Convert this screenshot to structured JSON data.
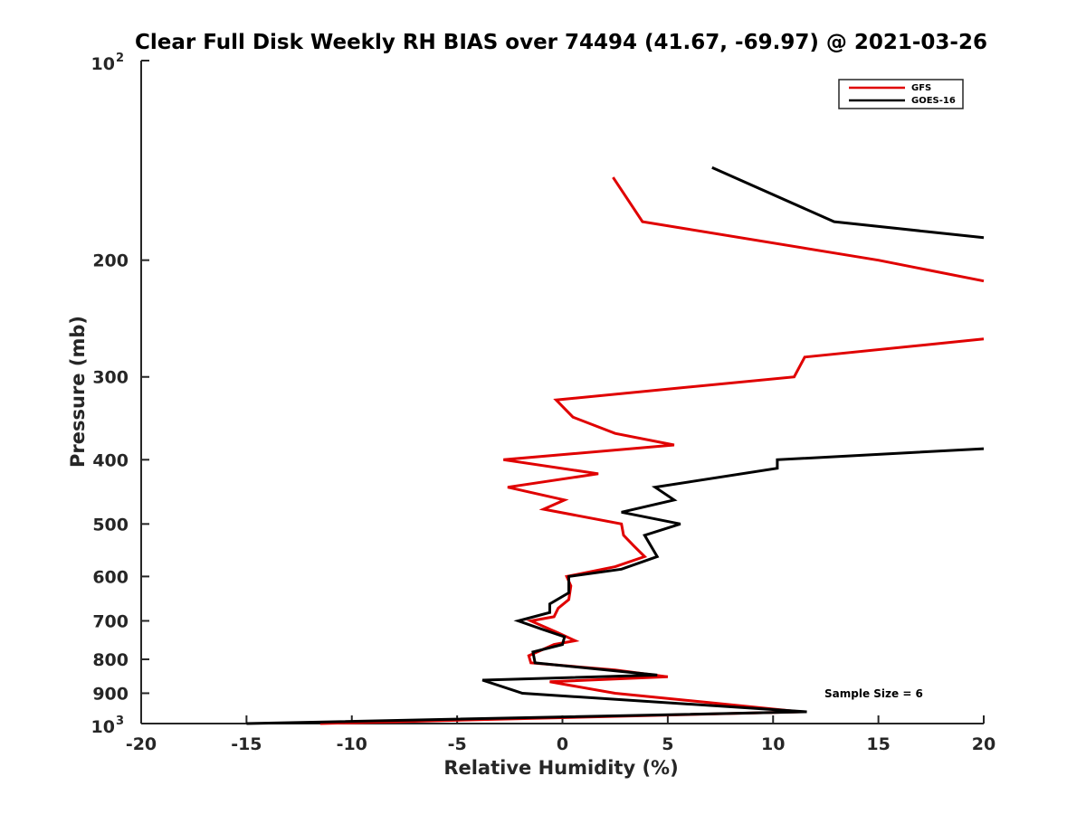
{
  "chart_data": {
    "type": "line",
    "title": "Clear Full Disk Weekly RH BIAS over 74494 (41.67, -69.97) @ 2021-03-26",
    "xlabel": "Relative Humidity (%)",
    "ylabel": "Pressure (mb)",
    "xlim": [
      -20,
      20
    ],
    "ylim": [
      100,
      1000
    ],
    "yscale": "log",
    "y_reversed": true,
    "x_ticks": [
      -20,
      -15,
      -10,
      -5,
      0,
      5,
      10,
      15,
      20
    ],
    "x_tick_labels": [
      "-20",
      "-15",
      "-10",
      "-5",
      "0",
      "5",
      "10",
      "15",
      "20"
    ],
    "y_ticks": [
      200,
      300,
      400,
      500,
      600,
      700,
      800,
      900
    ],
    "y_tick_labels": [
      "200",
      "300",
      "400",
      "500",
      "600",
      "700",
      "800",
      "900"
    ],
    "y_end_labels": {
      "top_base": "10",
      "top_exp": "2",
      "bottom_base": "10",
      "bottom_exp": "3"
    },
    "legend_position": "top-right",
    "grid": false,
    "annotation": "Sample Size = 6",
    "series": [
      {
        "name": "GFS",
        "color": "#e00000",
        "points": [
          {
            "x": 2.4,
            "p": 150
          },
          {
            "x": 3.8,
            "p": 175
          },
          {
            "x": 15.0,
            "p": 200
          },
          {
            "x": 20.0,
            "p": 215
          },
          {
            "x": null,
            "p": 230
          },
          {
            "x": 20.0,
            "p": 263
          },
          {
            "x": 11.5,
            "p": 280
          },
          {
            "x": 11.0,
            "p": 300
          },
          {
            "x": -0.3,
            "p": 325
          },
          {
            "x": 0.5,
            "p": 345
          },
          {
            "x": 2.5,
            "p": 365
          },
          {
            "x": 5.3,
            "p": 380
          },
          {
            "x": -2.8,
            "p": 400
          },
          {
            "x": 1.7,
            "p": 420
          },
          {
            "x": -2.6,
            "p": 440
          },
          {
            "x": 0.1,
            "p": 460
          },
          {
            "x": -0.9,
            "p": 475
          },
          {
            "x": 2.8,
            "p": 500
          },
          {
            "x": 2.9,
            "p": 520
          },
          {
            "x": 3.4,
            "p": 540
          },
          {
            "x": 3.9,
            "p": 560
          },
          {
            "x": 2.5,
            "p": 580
          },
          {
            "x": 0.2,
            "p": 600
          },
          {
            "x": 0.4,
            "p": 620
          },
          {
            "x": 0.3,
            "p": 650
          },
          {
            "x": -0.2,
            "p": 670
          },
          {
            "x": -0.4,
            "p": 690
          },
          {
            "x": -1.5,
            "p": 700
          },
          {
            "x": -0.2,
            "p": 730
          },
          {
            "x": 0.6,
            "p": 750
          },
          {
            "x": -0.4,
            "p": 760
          },
          {
            "x": -1.6,
            "p": 790
          },
          {
            "x": -1.5,
            "p": 810
          },
          {
            "x": 2.5,
            "p": 830
          },
          {
            "x": 5.0,
            "p": 850
          },
          {
            "x": -0.6,
            "p": 865
          },
          {
            "x": 2.5,
            "p": 900
          },
          {
            "x": 7.0,
            "p": 930
          },
          {
            "x": 11.3,
            "p": 960
          },
          {
            "x": -11.5,
            "p": 1000
          }
        ]
      },
      {
        "name": "GOES-16",
        "color": "#000000",
        "points": [
          {
            "x": 7.1,
            "p": 145
          },
          {
            "x": 12.9,
            "p": 175
          },
          {
            "x": 20.0,
            "p": 185
          },
          {
            "x": null,
            "p": 300
          },
          {
            "x": 20.0,
            "p": 385
          },
          {
            "x": 10.2,
            "p": 400
          },
          {
            "x": 10.2,
            "p": 412
          },
          {
            "x": 4.4,
            "p": 440
          },
          {
            "x": 5.3,
            "p": 460
          },
          {
            "x": 2.8,
            "p": 480
          },
          {
            "x": 5.6,
            "p": 500
          },
          {
            "x": 3.9,
            "p": 520
          },
          {
            "x": 4.5,
            "p": 560
          },
          {
            "x": 2.8,
            "p": 585
          },
          {
            "x": 0.3,
            "p": 600
          },
          {
            "x": 0.3,
            "p": 635
          },
          {
            "x": -0.6,
            "p": 660
          },
          {
            "x": -0.6,
            "p": 680
          },
          {
            "x": -2.1,
            "p": 700
          },
          {
            "x": -1.0,
            "p": 720
          },
          {
            "x": 0.1,
            "p": 740
          },
          {
            "x": 0.0,
            "p": 760
          },
          {
            "x": -1.4,
            "p": 780
          },
          {
            "x": -1.3,
            "p": 810
          },
          {
            "x": 4.5,
            "p": 845
          },
          {
            "x": -3.8,
            "p": 860
          },
          {
            "x": -1.9,
            "p": 900
          },
          {
            "x": 11.6,
            "p": 960
          },
          {
            "x": -15.0,
            "p": 1000
          }
        ]
      }
    ]
  }
}
